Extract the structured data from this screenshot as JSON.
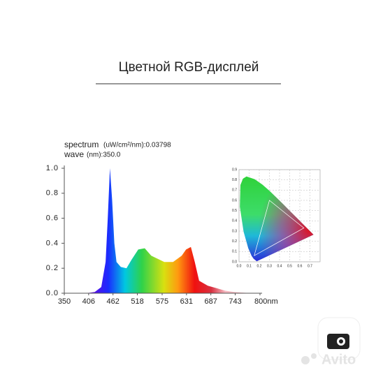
{
  "header": {
    "title": "Цветной RGB-дисплей"
  },
  "chart_data": [
    {
      "type": "line",
      "annotations": [
        "spectrum",
        "(uW/cm²/nm):0.03798",
        "wave",
        "(nm):350.0"
      ],
      "x": [
        350,
        400,
        420,
        435,
        445,
        450,
        455,
        460,
        465,
        470,
        480,
        493,
        505,
        520,
        535,
        550,
        580,
        600,
        620,
        630,
        641,
        650,
        660,
        680,
        700,
        720,
        740,
        760,
        780
      ],
      "values": [
        0,
        0,
        0.01,
        0.05,
        0.25,
        0.6,
        1.0,
        0.75,
        0.4,
        0.25,
        0.21,
        0.2,
        0.27,
        0.35,
        0.36,
        0.3,
        0.25,
        0.25,
        0.3,
        0.35,
        0.37,
        0.25,
        0.1,
        0.06,
        0.04,
        0.02,
        0.01,
        0.005,
        0
      ],
      "xlim": [
        350,
        800
      ],
      "ylim": [
        0,
        1.0
      ],
      "xticks": [
        350,
        406,
        462,
        518,
        575,
        631,
        687,
        743,
        {
          "value": 800,
          "label": "800nm"
        }
      ],
      "yticks": [
        {
          "value": 0,
          "label": "0.0"
        },
        {
          "value": 0.2,
          "label": "0.2"
        },
        {
          "value": 0.4,
          "label": "0.4"
        },
        {
          "value": 0.6,
          "label": "0.6"
        },
        {
          "value": 0.8,
          "label": "0.8"
        },
        {
          "value": 1,
          "label": "1.0"
        }
      ]
    },
    {
      "type": "chromaticity",
      "xlim": [
        0,
        0.8
      ],
      "ylim": [
        0,
        0.9
      ],
      "xticks": [
        {
          "value": 0,
          "label": "0.0"
        },
        0.1,
        0.2,
        0.3,
        0.4,
        0.5,
        0.6,
        0.7
      ],
      "yticks": [
        {
          "value": 0,
          "label": "0.0"
        },
        0.1,
        0.2,
        0.3,
        0.4,
        0.5,
        0.6,
        0.7,
        0.8,
        0.9
      ],
      "grid": true
    }
  ],
  "watermark": "Avito"
}
